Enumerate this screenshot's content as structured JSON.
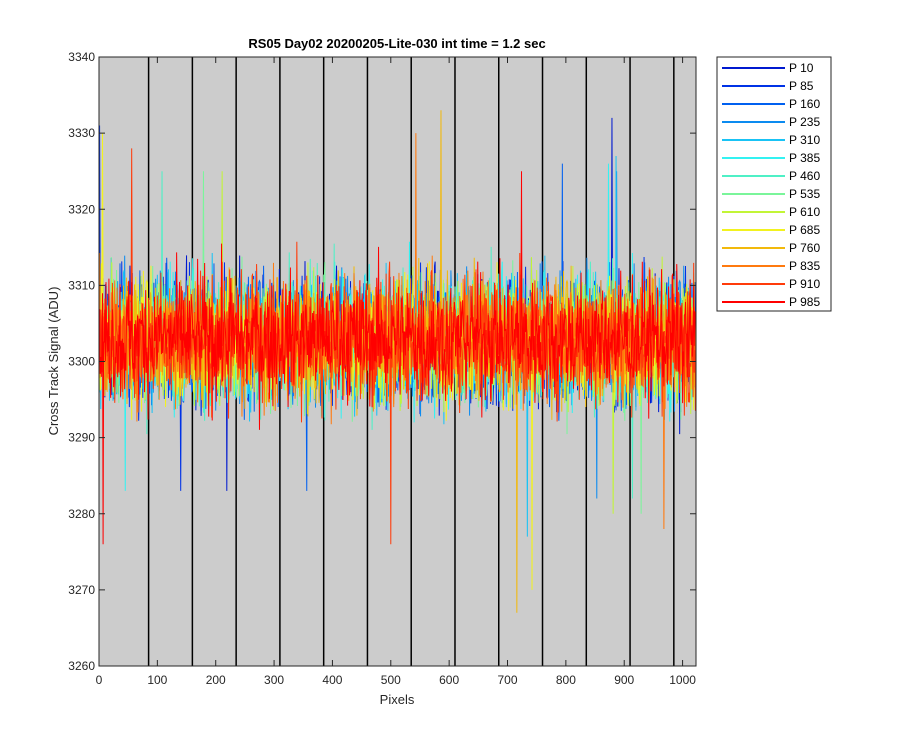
{
  "chart_data": {
    "type": "line",
    "title": "RS05 Day02 20200205-Lite-030 int time = 1.2 sec",
    "xlabel": "Pixels",
    "ylabel": "Cross Track Signal (ADU)",
    "xlim": [
      0,
      1023
    ],
    "ylim": [
      3260,
      3340
    ],
    "xticks": [
      0,
      100,
      200,
      300,
      400,
      500,
      600,
      700,
      800,
      900,
      1000
    ],
    "yticks": [
      3260,
      3270,
      3280,
      3290,
      3300,
      3310,
      3320,
      3330,
      3340
    ],
    "background": "#cccccc",
    "segment_boundaries": [
      85,
      160,
      235,
      310,
      385,
      460,
      535,
      610,
      685,
      760,
      835,
      910,
      985
    ],
    "legend_position": "outside-top-right",
    "series_count_per_pixel": 1024,
    "center_value": 3303,
    "series": [
      {
        "name": "P 10",
        "color": "#0019cf",
        "min": 3283,
        "max": 3332
      },
      {
        "name": "P 85",
        "color": "#0032e6",
        "min": 3283,
        "max": 3331
      },
      {
        "name": "P 160",
        "color": "#0060f0",
        "min": 3283,
        "max": 3326
      },
      {
        "name": "P 235",
        "color": "#0c8bf0",
        "min": 3282,
        "max": 3325
      },
      {
        "name": "P 310",
        "color": "#19c3f5",
        "min": 3277,
        "max": 3327
      },
      {
        "name": "P 385",
        "color": "#33f2f2",
        "min": 3283,
        "max": 3326
      },
      {
        "name": "P 460",
        "color": "#4ff0c6",
        "min": 3282,
        "max": 3325
      },
      {
        "name": "P 535",
        "color": "#7af59a",
        "min": 3280,
        "max": 3325
      },
      {
        "name": "P 610",
        "color": "#c2f536",
        "min": 3280,
        "max": 3325
      },
      {
        "name": "P 685",
        "color": "#f2f21f",
        "min": 3270,
        "max": 3330
      },
      {
        "name": "P 760",
        "color": "#f2b90c",
        "min": 3267,
        "max": 3333
      },
      {
        "name": "P 835",
        "color": "#ff7a0f",
        "min": 3278,
        "max": 3330
      },
      {
        "name": "P 910",
        "color": "#ff3b0a",
        "min": 3276,
        "max": 3328
      },
      {
        "name": "P 985",
        "color": "#ff0000",
        "min": 3276,
        "max": 3325
      }
    ]
  }
}
